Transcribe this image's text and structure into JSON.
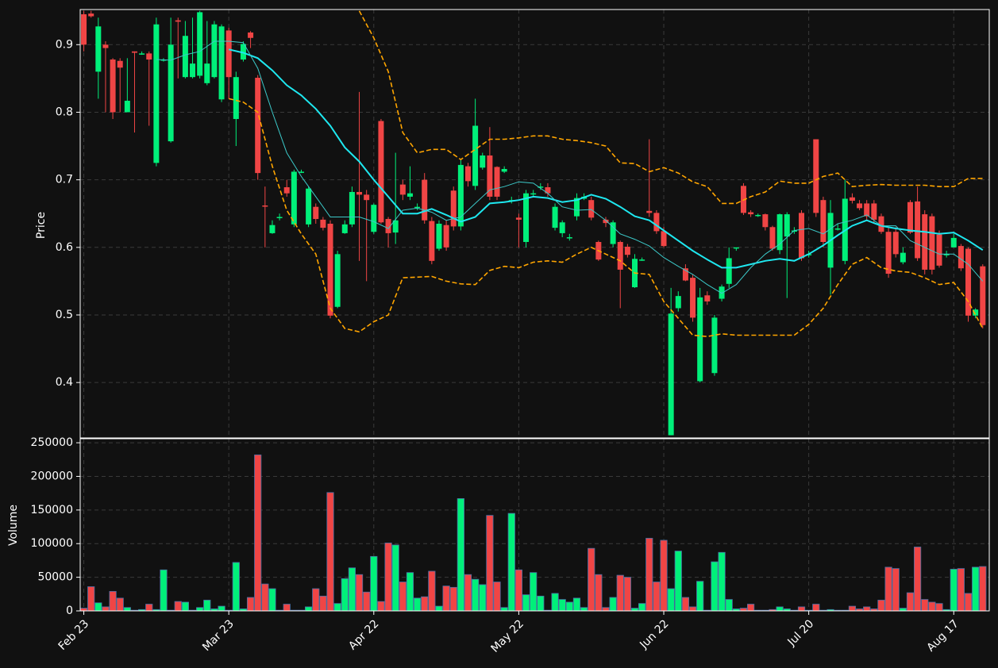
{
  "chart_data": [
    {
      "type": "candlestick",
      "ylabel": "Price",
      "up_color": "#00f07a",
      "down_color": "#f04545",
      "grid": true,
      "xlim": [
        -0.5,
        124.9
      ],
      "ylim": [
        0.318,
        0.952
      ],
      "yticks": [
        0.4,
        0.5,
        0.6,
        0.7,
        0.8,
        0.9
      ],
      "open": [
        0.945,
        0.946,
        0.86,
        0.9,
        0.878,
        0.876,
        0.8,
        0.89,
        0.887,
        0.887,
        0.725,
        0.878,
        0.757,
        0.936,
        0.852,
        0.852,
        0.854,
        0.843,
        0.852,
        0.819,
        0.921,
        0.79,
        0.878,
        0.918,
        0.851,
        0.662,
        0.621,
        0.645,
        0.689,
        0.634,
        0.712,
        0.634,
        0.66,
        0.641,
        0.635,
        0.512,
        0.621,
        0.634,
        0.682,
        0.678,
        0.623,
        0.787,
        0.642,
        0.622,
        0.693,
        0.675,
        0.66,
        0.7,
        0.639,
        0.598,
        0.633,
        0.684,
        0.631,
        0.72,
        0.691,
        0.718,
        0.736,
        0.719,
        0.712,
        0.67,
        0.644,
        0.608,
        0.68,
        0.69,
        0.689,
        0.629,
        0.621,
        0.615,
        0.646,
        0.672,
        0.67,
        0.608,
        0.641,
        0.605,
        0.608,
        0.601,
        0.541,
        0.582,
        0.654,
        0.651,
        0.624,
        0.322,
        0.51,
        0.569,
        0.555,
        0.402,
        0.529,
        0.414,
        0.524,
        0.546,
        0.6,
        0.691,
        0.652,
        0.648,
        0.649,
        0.63,
        0.596,
        0.616,
        0.625,
        0.651,
        0.59,
        0.76,
        0.67,
        0.57,
        0.628,
        0.58,
        0.674,
        0.665,
        0.665,
        0.665,
        0.646,
        0.623,
        0.623,
        0.578,
        0.667,
        0.668,
        0.649,
        0.646,
        0.619,
        0.59,
        0.6,
        0.602,
        0.598,
        0.499,
        0.572
      ],
      "high": [
        0.95,
        0.95,
        0.94,
        0.905,
        0.88,
        0.88,
        0.88,
        0.89,
        0.89,
        0.89,
        0.94,
        0.88,
        0.94,
        0.94,
        0.935,
        0.94,
        0.95,
        0.935,
        0.935,
        0.93,
        0.925,
        0.86,
        0.905,
        0.92,
        0.855,
        0.69,
        0.64,
        0.65,
        0.7,
        0.715,
        0.715,
        0.69,
        0.665,
        0.645,
        0.64,
        0.595,
        0.64,
        0.69,
        0.83,
        0.685,
        0.665,
        0.79,
        0.645,
        0.74,
        0.7,
        0.72,
        0.665,
        0.71,
        0.645,
        0.64,
        0.64,
        0.69,
        0.73,
        0.725,
        0.82,
        0.74,
        0.778,
        0.72,
        0.72,
        0.675,
        0.65,
        0.685,
        0.685,
        0.695,
        0.695,
        0.665,
        0.64,
        0.62,
        0.68,
        0.68,
        0.675,
        0.61,
        0.645,
        0.64,
        0.61,
        0.605,
        0.59,
        0.585,
        0.76,
        0.655,
        0.63,
        0.54,
        0.535,
        0.575,
        0.56,
        0.54,
        0.535,
        0.5,
        0.545,
        0.6,
        0.6,
        0.695,
        0.655,
        0.65,
        0.65,
        0.632,
        0.65,
        0.652,
        0.63,
        0.655,
        0.595,
        0.76,
        0.675,
        0.67,
        0.635,
        0.7,
        0.68,
        0.67,
        0.67,
        0.67,
        0.65,
        0.63,
        0.63,
        0.6,
        0.67,
        0.69,
        0.655,
        0.65,
        0.625,
        0.595,
        0.62,
        0.605,
        0.6,
        0.51,
        0.575
      ],
      "low": [
        0.89,
        0.94,
        0.82,
        0.8,
        0.79,
        0.8,
        0.8,
        0.77,
        0.885,
        0.78,
        0.72,
        0.875,
        0.755,
        0.85,
        0.85,
        0.85,
        0.85,
        0.84,
        0.85,
        0.815,
        0.82,
        0.75,
        0.875,
        0.895,
        0.7,
        0.6,
        0.62,
        0.64,
        0.675,
        0.63,
        0.71,
        0.63,
        0.635,
        0.625,
        0.495,
        0.51,
        0.62,
        0.63,
        0.58,
        0.55,
        0.62,
        0.635,
        0.6,
        0.605,
        0.67,
        0.67,
        0.655,
        0.635,
        0.575,
        0.595,
        0.595,
        0.625,
        0.625,
        0.69,
        0.685,
        0.715,
        0.67,
        0.67,
        0.71,
        0.665,
        0.6,
        0.6,
        0.675,
        0.685,
        0.675,
        0.625,
        0.615,
        0.61,
        0.64,
        0.67,
        0.64,
        0.58,
        0.63,
        0.6,
        0.51,
        0.585,
        0.54,
        0.58,
        0.645,
        0.62,
        0.6,
        0.322,
        0.505,
        0.55,
        0.49,
        0.4,
        0.515,
        0.41,
        0.52,
        0.54,
        0.595,
        0.648,
        0.645,
        0.645,
        0.625,
        0.595,
        0.59,
        0.525,
        0.62,
        0.58,
        0.585,
        0.645,
        0.6,
        0.53,
        0.625,
        0.575,
        0.665,
        0.655,
        0.64,
        0.635,
        0.62,
        0.555,
        0.585,
        0.575,
        0.62,
        0.58,
        0.56,
        0.56,
        0.57,
        0.585,
        0.6,
        0.565,
        0.49,
        0.495,
        0.48
      ],
      "close": [
        0.9,
        0.942,
        0.927,
        0.895,
        0.8,
        0.866,
        0.817,
        0.888,
        0.887,
        0.878,
        0.93,
        0.878,
        0.9,
        0.934,
        0.913,
        0.872,
        0.948,
        0.872,
        0.93,
        0.927,
        0.852,
        0.852,
        0.901,
        0.91,
        0.71,
        0.661,
        0.633,
        0.645,
        0.68,
        0.712,
        0.712,
        0.687,
        0.642,
        0.629,
        0.499,
        0.59,
        0.634,
        0.682,
        0.678,
        0.67,
        0.663,
        0.637,
        0.621,
        0.64,
        0.678,
        0.68,
        0.66,
        0.64,
        0.58,
        0.635,
        0.6,
        0.631,
        0.722,
        0.698,
        0.78,
        0.736,
        0.675,
        0.675,
        0.716,
        0.67,
        0.641,
        0.68,
        0.68,
        0.69,
        0.68,
        0.66,
        0.637,
        0.615,
        0.673,
        0.675,
        0.644,
        0.582,
        0.636,
        0.637,
        0.567,
        0.589,
        0.583,
        0.582,
        0.651,
        0.624,
        0.602,
        0.502,
        0.528,
        0.551,
        0.496,
        0.526,
        0.52,
        0.496,
        0.542,
        0.584,
        0.6,
        0.651,
        0.649,
        0.648,
        0.63,
        0.598,
        0.649,
        0.649,
        0.625,
        0.584,
        0.59,
        0.651,
        0.608,
        0.651,
        0.628,
        0.672,
        0.669,
        0.658,
        0.646,
        0.641,
        0.623,
        0.561,
        0.59,
        0.592,
        0.622,
        0.584,
        0.567,
        0.567,
        0.573,
        0.59,
        0.614,
        0.569,
        0.499,
        0.508,
        0.485
      ],
      "lines": [
        {
          "color": "#1ee8f0",
          "width": 2,
          "dashed": false,
          "x": [
            20,
            22,
            24,
            26,
            28,
            30,
            32,
            34,
            36,
            38,
            40,
            42,
            44,
            46,
            48,
            50,
            52,
            54,
            56,
            58,
            60,
            62,
            64,
            66,
            68,
            70,
            72,
            74,
            76,
            78,
            80,
            82,
            84,
            86,
            88,
            90,
            92,
            94,
            96,
            98,
            100,
            102,
            104,
            106,
            108,
            110,
            112,
            114,
            116,
            118,
            120,
            122,
            124
          ],
          "values": [
            0.893,
            0.888,
            0.88,
            0.862,
            0.84,
            0.825,
            0.805,
            0.78,
            0.748,
            0.727,
            0.7,
            0.675,
            0.65,
            0.65,
            0.657,
            0.648,
            0.638,
            0.645,
            0.665,
            0.667,
            0.67,
            0.675,
            0.673,
            0.667,
            0.67,
            0.678,
            0.672,
            0.66,
            0.646,
            0.64,
            0.625,
            0.61,
            0.595,
            0.582,
            0.57,
            0.57,
            0.575,
            0.58,
            0.583,
            0.58,
            0.59,
            0.603,
            0.618,
            0.632,
            0.64,
            0.632,
            0.628,
            0.625,
            0.623,
            0.62,
            0.622,
            0.61,
            0.596
          ]
        },
        {
          "color": "#3cc9c9",
          "width": 1,
          "dashed": false,
          "x": [
            10,
            12,
            14,
            16,
            18,
            20,
            22,
            24,
            26,
            28,
            30,
            32,
            34,
            36,
            38,
            40,
            42,
            44,
            46,
            48,
            50,
            52,
            54,
            56,
            58,
            60,
            62,
            64,
            66,
            68,
            70,
            72,
            74,
            76,
            78,
            80,
            82,
            84,
            86,
            88,
            90,
            92,
            94,
            96,
            98,
            100,
            102,
            104,
            106,
            108,
            110,
            112,
            114,
            116,
            118,
            120,
            122,
            124
          ],
          "values": [
            0.878,
            0.877,
            0.885,
            0.89,
            0.905,
            0.905,
            0.903,
            0.865,
            0.8,
            0.74,
            0.705,
            0.675,
            0.645,
            0.645,
            0.645,
            0.638,
            0.628,
            0.655,
            0.658,
            0.652,
            0.64,
            0.645,
            0.665,
            0.685,
            0.69,
            0.697,
            0.695,
            0.68,
            0.66,
            0.655,
            0.656,
            0.64,
            0.62,
            0.612,
            0.602,
            0.585,
            0.572,
            0.56,
            0.545,
            0.532,
            0.545,
            0.57,
            0.59,
            0.605,
            0.625,
            0.628,
            0.62,
            0.635,
            0.64,
            0.648,
            0.632,
            0.632,
            0.61,
            0.6,
            0.59,
            0.59,
            0.575,
            0.55
          ]
        },
        {
          "color": "#ffa500",
          "width": 1.6,
          "dashed": true,
          "x": [
            38,
            40,
            42,
            44,
            46,
            48,
            50,
            52,
            54,
            56,
            58,
            60,
            62,
            64,
            66,
            68,
            70,
            72,
            74,
            76,
            78,
            80,
            82,
            84,
            86,
            88,
            90,
            92,
            94,
            96,
            98,
            100,
            102,
            104,
            106,
            108,
            110,
            112,
            114,
            116,
            118,
            120,
            122,
            124
          ],
          "values": [
            0.95,
            0.91,
            0.86,
            0.77,
            0.74,
            0.745,
            0.745,
            0.73,
            0.745,
            0.76,
            0.76,
            0.762,
            0.765,
            0.765,
            0.76,
            0.758,
            0.755,
            0.75,
            0.725,
            0.724,
            0.712,
            0.718,
            0.71,
            0.697,
            0.69,
            0.665,
            0.665,
            0.675,
            0.682,
            0.698,
            0.695,
            0.695,
            0.705,
            0.71,
            0.69,
            0.692,
            0.693,
            0.692,
            0.692,
            0.692,
            0.69,
            0.69,
            0.702,
            0.702
          ]
        },
        {
          "color": "#ffa500",
          "width": 1.6,
          "dashed": true,
          "x": [
            20,
            22,
            24,
            26,
            28,
            30,
            32,
            34,
            36,
            38,
            40,
            42,
            44,
            46,
            48,
            50,
            52,
            54,
            56,
            58,
            60,
            62,
            64,
            66,
            68,
            70,
            72,
            74,
            76,
            78,
            80,
            82,
            84,
            86,
            88,
            90,
            92,
            94,
            96,
            98,
            100,
            102,
            104,
            106,
            108,
            110,
            112,
            114,
            116,
            118,
            120,
            122,
            124
          ],
          "values": [
            0.82,
            0.815,
            0.8,
            0.72,
            0.655,
            0.62,
            0.59,
            0.51,
            0.48,
            0.475,
            0.49,
            0.5,
            0.555,
            0.556,
            0.557,
            0.55,
            0.546,
            0.545,
            0.566,
            0.572,
            0.57,
            0.578,
            0.58,
            0.578,
            0.59,
            0.6,
            0.59,
            0.58,
            0.562,
            0.56,
            0.52,
            0.495,
            0.47,
            0.468,
            0.472,
            0.47,
            0.47,
            0.47,
            0.47,
            0.47,
            0.486,
            0.51,
            0.545,
            0.575,
            0.585,
            0.57,
            0.565,
            0.563,
            0.555,
            0.545,
            0.548,
            0.52,
            0.48
          ]
        }
      ]
    },
    {
      "type": "volume",
      "ylabel": "Volume",
      "grid": true,
      "edge_color": "#4a6fa5",
      "xlim": [
        -0.5,
        124.9
      ],
      "ylim": [
        0,
        256000
      ],
      "yticks": [
        0,
        50000,
        100000,
        150000,
        200000,
        250000
      ],
      "xticks": [
        {
          "value": 0,
          "label": "Feb 23"
        },
        {
          "value": 20,
          "label": "Mar 23"
        },
        {
          "value": 40,
          "label": "Apr 22"
        },
        {
          "value": 60,
          "label": "May 22"
        },
        {
          "value": 80,
          "label": "Jun 22"
        },
        {
          "value": 100,
          "label": "Jul 20"
        },
        {
          "value": 120,
          "label": "Aug 17"
        }
      ],
      "values": [
        4000,
        36000,
        12000,
        6000,
        29000,
        19000,
        5000,
        1000,
        2000,
        10000,
        2000,
        61000,
        1000,
        14000,
        13000,
        1000,
        5000,
        16000,
        3000,
        7000,
        1000,
        72000,
        3000,
        20000,
        232000,
        40000,
        33000,
        1000,
        10000,
        1000,
        1000,
        6000,
        33000,
        22000,
        176000,
        11000,
        48000,
        64000,
        54000,
        28000,
        81000,
        14000,
        101000,
        98000,
        43000,
        57000,
        19000,
        21000,
        59000,
        7000,
        37000,
        35000,
        167000,
        54000,
        47000,
        39000,
        142000,
        43000,
        5000,
        145000,
        61000,
        24000,
        57000,
        22000,
        1000,
        26000,
        17000,
        13000,
        19000,
        5000,
        93000,
        54000,
        5000,
        20000,
        53000,
        50000,
        4000,
        11000,
        108000,
        43000,
        105000,
        33000,
        89000,
        20000,
        6000,
        44000,
        1000,
        73000,
        87000,
        17000,
        3000,
        4000,
        10000,
        1000,
        1000,
        2000,
        6000,
        3000,
        1000,
        6000,
        1000,
        10000,
        1000,
        2000,
        1000,
        1000,
        7000,
        3000,
        6000,
        3000,
        16000,
        65000,
        63000,
        4000,
        27000,
        95000,
        17000,
        13000,
        11000,
        2000,
        62000,
        63000,
        26000,
        65000,
        66000
      ]
    }
  ]
}
